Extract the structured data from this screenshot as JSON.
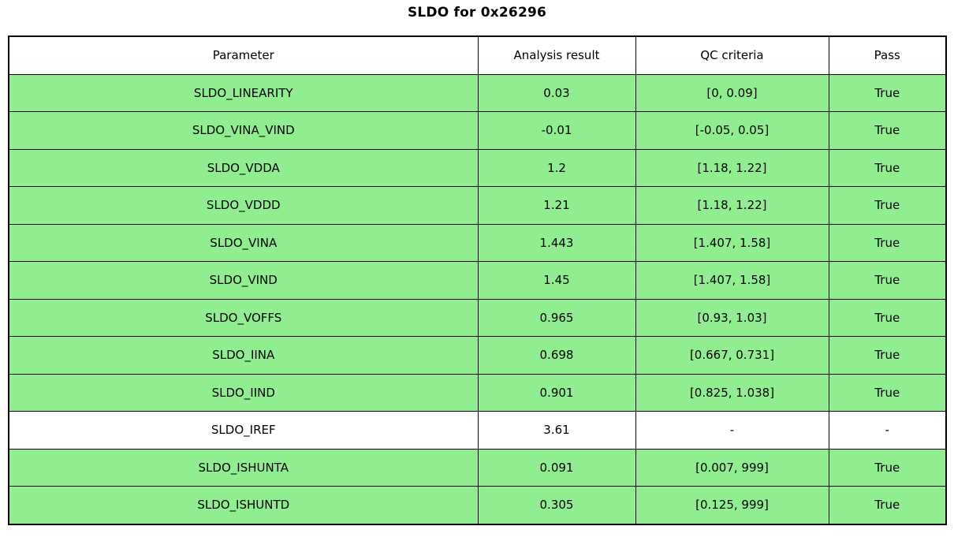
{
  "title": "SLDO for 0x26296",
  "colors": {
    "highlight_green": "#90EE90",
    "row_plain": "#FFFFFF",
    "border": "#000000",
    "text": "#000000",
    "background": "#FFFFFF"
  },
  "chart_data": {
    "type": "table",
    "title": "SLDO for 0x26296",
    "columns": [
      "Parameter",
      "Analysis result",
      "QC criteria",
      "Pass"
    ],
    "rows": [
      {
        "cells": [
          "SLDO_LINEARITY",
          "0.03",
          "[0, 0.09]",
          "True"
        ],
        "highlighted": true
      },
      {
        "cells": [
          "SLDO_VINA_VIND",
          "-0.01",
          "[-0.05, 0.05]",
          "True"
        ],
        "highlighted": true
      },
      {
        "cells": [
          "SLDO_VDDA",
          "1.2",
          "[1.18, 1.22]",
          "True"
        ],
        "highlighted": true
      },
      {
        "cells": [
          "SLDO_VDDD",
          "1.21",
          "[1.18, 1.22]",
          "True"
        ],
        "highlighted": true
      },
      {
        "cells": [
          "SLDO_VINA",
          "1.443",
          "[1.407, 1.58]",
          "True"
        ],
        "highlighted": true
      },
      {
        "cells": [
          "SLDO_VIND",
          "1.45",
          "[1.407, 1.58]",
          "True"
        ],
        "highlighted": true
      },
      {
        "cells": [
          "SLDO_VOFFS",
          "0.965",
          "[0.93, 1.03]",
          "True"
        ],
        "highlighted": true
      },
      {
        "cells": [
          "SLDO_IINA",
          "0.698",
          "[0.667, 0.731]",
          "True"
        ],
        "highlighted": true
      },
      {
        "cells": [
          "SLDO_IIND",
          "0.901",
          "[0.825, 1.038]",
          "True"
        ],
        "highlighted": true
      },
      {
        "cells": [
          "SLDO_IREF",
          "3.61",
          "-",
          "-"
        ],
        "highlighted": false
      },
      {
        "cells": [
          "SLDO_ISHUNTA",
          "0.091",
          "[0.007, 999]",
          "True"
        ],
        "highlighted": true
      },
      {
        "cells": [
          "SLDO_ISHUNTD",
          "0.305",
          "[0.125, 999]",
          "True"
        ],
        "highlighted": true
      }
    ],
    "highlight_color": "#90EE90",
    "legend_position": "none",
    "grid": true
  }
}
